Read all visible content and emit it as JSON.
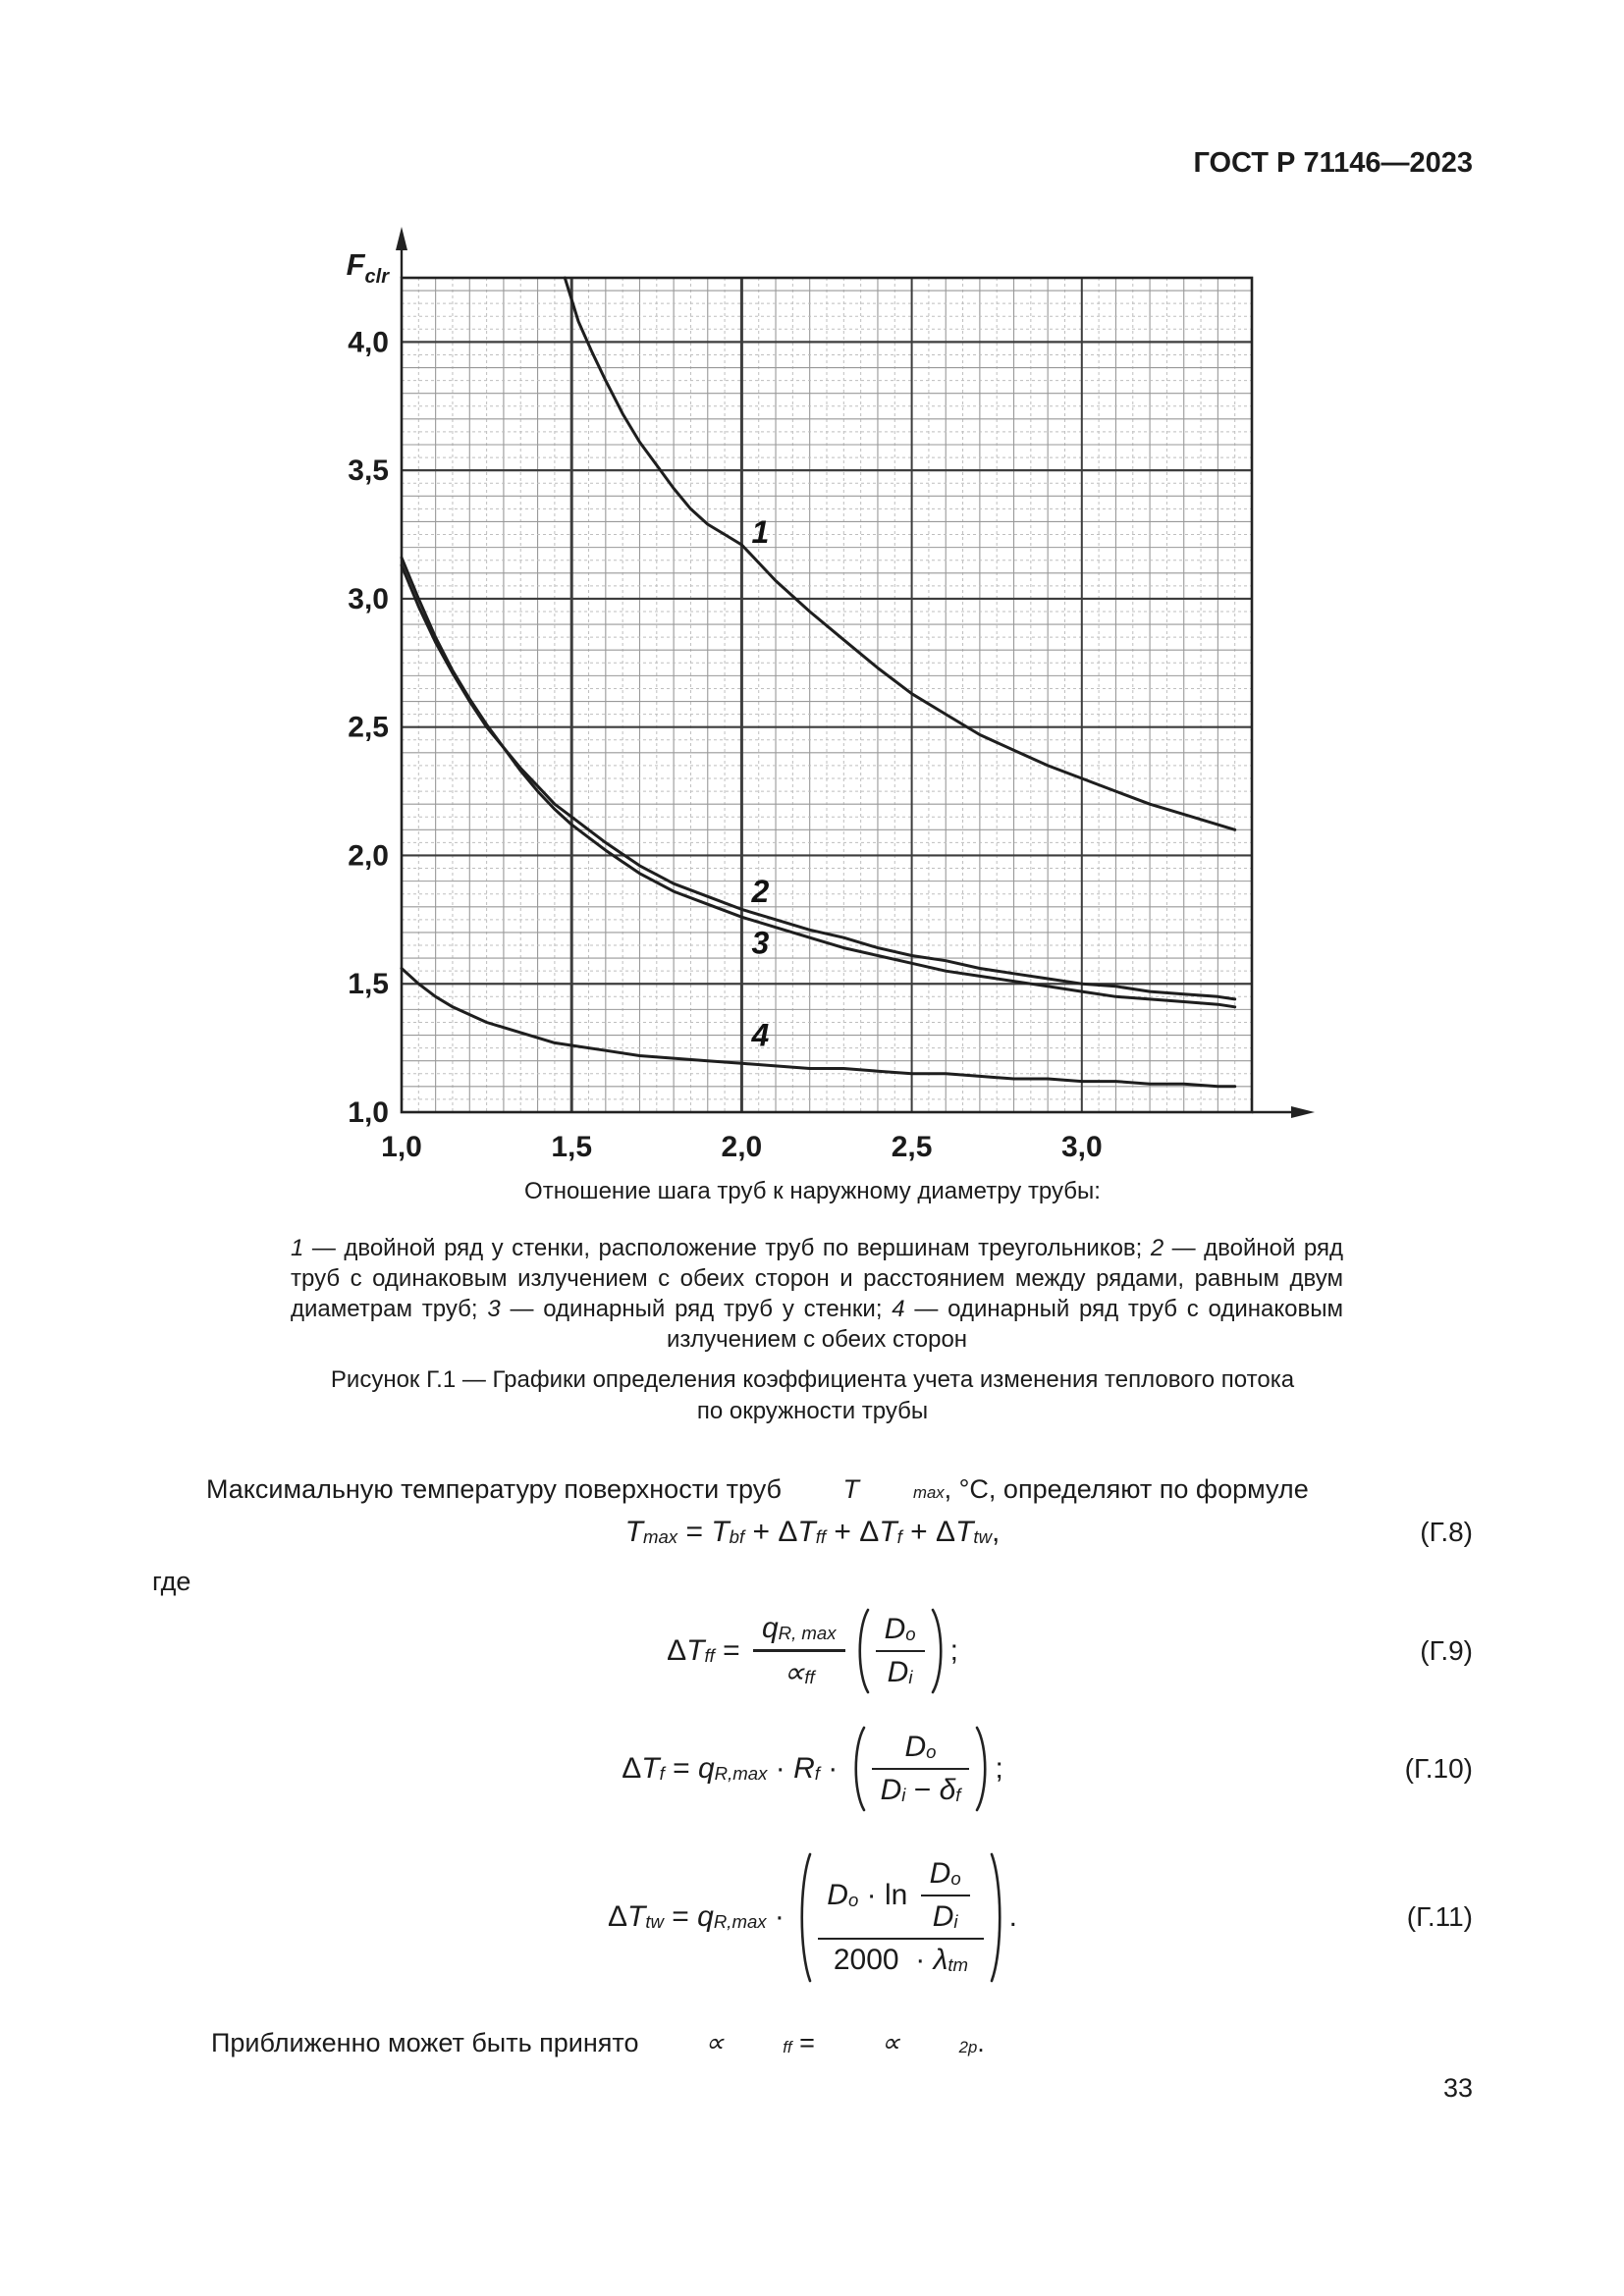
{
  "header": {
    "title": "ГОСТ Р 71146—2023"
  },
  "page_number": "33",
  "figure": {
    "caption_lines": [
      "Рисунок Г.1 — Графики определения коэффициента учета изменения теплового потока",
      "по окружности трубы"
    ],
    "legend_segments": [
      {
        "i": "1"
      },
      {
        "t": " — двойной ряд у стенки, расположение труб по вершинам треугольников; "
      },
      {
        "i": "2"
      },
      {
        "t": " — двойной ряд труб с одинаковым излучением с обеих сторон и расстоянием между рядами, равным двум диаметрам труб; "
      },
      {
        "i": "3"
      },
      {
        "t": " — одинарный ряд труб у стенки; "
      },
      {
        "i": "4"
      },
      {
        "t": " — одинарный ряд труб с одинаковым излучением с обеих сторон"
      }
    ]
  },
  "paragraphs": {
    "tmax_segments": [
      {
        "t": "Максимальную температуру поверхности труб "
      },
      {
        "v": "T",
        "sub": "max"
      },
      {
        "t": ", °С, определяют по формуле"
      }
    ],
    "where": "где",
    "approx_segments": [
      {
        "t": "Приближенно может быть принято "
      },
      {
        "v": "∝",
        "sub": "ff"
      },
      {
        "t": " = "
      },
      {
        "v": "∝",
        "sub": "2p"
      },
      {
        "t": "."
      }
    ]
  },
  "equations": {
    "g8": {
      "number": "(Г.8)",
      "nodes": [
        {
          "v": "T",
          "sub": "max"
        },
        {
          "op": " = "
        },
        {
          "v": "T",
          "sub": "bf"
        },
        {
          "op": " + "
        },
        {
          "pre": "Δ",
          "v": "T",
          "sub": "ff"
        },
        {
          "op": " + "
        },
        {
          "pre": "Δ",
          "v": "T",
          "sub": "f"
        },
        {
          "op": " + "
        },
        {
          "pre": "Δ",
          "v": "T",
          "sub": "tw"
        },
        {
          "op": ","
        }
      ]
    },
    "g9": {
      "number": "(Г.9)",
      "nodes": [
        {
          "pre": "Δ",
          "v": "T",
          "sub": "ff"
        },
        {
          "op": " = "
        },
        {
          "frac": {
            "n": [
              {
                "v": "q",
                "sub": "R, max"
              }
            ],
            "d": [
              {
                "v": "∝",
                "sub": "ff"
              }
            ]
          }
        },
        {
          "par": [
            {
              "frac": {
                "n": [
                  {
                    "v": "D",
                    "sub": "o"
                  }
                ],
                "d": [
                  {
                    "v": "D",
                    "sub": "i"
                  }
                ]
              }
            }
          ]
        },
        {
          "op": ";"
        }
      ]
    },
    "g10": {
      "number": "(Г.10)",
      "nodes": [
        {
          "pre": "Δ",
          "v": "T",
          "sub": "f"
        },
        {
          "op": " = "
        },
        {
          "v": "q",
          "sub": "R,max"
        },
        {
          "op": " · "
        },
        {
          "v": "R",
          "sub": "f"
        },
        {
          "op": " · "
        },
        {
          "par": [
            {
              "frac": {
                "n": [
                  {
                    "v": "D",
                    "sub": "o"
                  }
                ],
                "d": [
                  {
                    "v": "D",
                    "sub": "i"
                  },
                  {
                    "op": " − "
                  },
                  {
                    "v": "δ",
                    "sub": "f"
                  }
                ]
              }
            }
          ]
        },
        {
          "op": ";"
        }
      ]
    },
    "g11": {
      "number": "(Г.11)",
      "nodes": [
        {
          "pre": "Δ",
          "v": "T",
          "sub": "tw"
        },
        {
          "op": " = "
        },
        {
          "v": "q",
          "sub": "R,max"
        },
        {
          "op": " · "
        },
        {
          "par": [
            {
              "frac": {
                "n": [
                  {
                    "v": "D",
                    "sub": "o"
                  },
                  {
                    "op": " · "
                  },
                  {
                    "txt": "ln"
                  },
                  {
                    "frac": {
                      "n": [
                        {
                          "v": "D",
                          "sub": "o"
                        }
                      ],
                      "d": [
                        {
                          "v": "D",
                          "sub": "i"
                        }
                      ]
                    }
                  }
                ],
                "d": [
                  {
                    "txt": "2000"
                  },
                  {
                    "op": " · "
                  },
                  {
                    "v": "λ",
                    "sub": "tm"
                  }
                ]
              }
            }
          ]
        },
        {
          "op": "."
        }
      ]
    }
  },
  "chart_data": {
    "type": "line",
    "title": "Графики определения коэффициента учета изменения теплового потока по окружности трубы",
    "xlabel": "Отношение шага труб к наружному диаметру трубы:",
    "ylabel_base": "F",
    "ylabel_sub": "clr",
    "xlim": [
      1.0,
      3.5
    ],
    "ylim": [
      1.0,
      4.25
    ],
    "grid": {
      "minor_step": 0.05,
      "mid_step": 0.1,
      "major_step": 0.5,
      "emphasis_x": [
        1.5,
        2.0
      ]
    },
    "x_ticks": [
      {
        "v": 1.0,
        "label": "1,0"
      },
      {
        "v": 1.5,
        "label": "1,5"
      },
      {
        "v": 2.0,
        "label": "2,0"
      },
      {
        "v": 2.5,
        "label": "2,5"
      },
      {
        "v": 3.0,
        "label": "3,0"
      }
    ],
    "y_ticks": [
      {
        "v": 1.0,
        "label": "1,0"
      },
      {
        "v": 1.5,
        "label": "1,5"
      },
      {
        "v": 2.0,
        "label": "2,0"
      },
      {
        "v": 2.5,
        "label": "2,5"
      },
      {
        "v": 3.0,
        "label": "3,0"
      },
      {
        "v": 3.5,
        "label": "3,5"
      },
      {
        "v": 4.0,
        "label": "4,0"
      }
    ],
    "colors": {
      "curve": "#1e1e1e",
      "grid_minor": "#bfbfbf",
      "grid_mid": "#999999",
      "grid_major": "#3d3d3d",
      "border": "#222222"
    },
    "series": [
      {
        "name": "1",
        "label": "1",
        "label_pos": [
          2.055,
          3.26
        ],
        "points": [
          [
            1.48,
            4.25
          ],
          [
            1.52,
            4.08
          ],
          [
            1.56,
            3.96
          ],
          [
            1.6,
            3.85
          ],
          [
            1.65,
            3.72
          ],
          [
            1.7,
            3.61
          ],
          [
            1.75,
            3.52
          ],
          [
            1.8,
            3.43
          ],
          [
            1.85,
            3.35
          ],
          [
            1.9,
            3.29
          ],
          [
            1.95,
            3.25
          ],
          [
            2.0,
            3.21
          ],
          [
            2.1,
            3.07
          ],
          [
            2.2,
            2.95
          ],
          [
            2.3,
            2.84
          ],
          [
            2.4,
            2.73
          ],
          [
            2.5,
            2.63
          ],
          [
            2.6,
            2.55
          ],
          [
            2.7,
            2.47
          ],
          [
            2.8,
            2.41
          ],
          [
            2.9,
            2.35
          ],
          [
            3.0,
            2.3
          ],
          [
            3.1,
            2.25
          ],
          [
            3.2,
            2.2
          ],
          [
            3.3,
            2.16
          ],
          [
            3.4,
            2.12
          ],
          [
            3.45,
            2.1
          ]
        ]
      },
      {
        "name": "2",
        "label": "2",
        "label_pos": [
          2.055,
          1.86
        ],
        "points": [
          [
            1.0,
            3.13
          ],
          [
            1.05,
            2.97
          ],
          [
            1.1,
            2.83
          ],
          [
            1.15,
            2.71
          ],
          [
            1.2,
            2.6
          ],
          [
            1.25,
            2.5
          ],
          [
            1.3,
            2.42
          ],
          [
            1.35,
            2.34
          ],
          [
            1.4,
            2.27
          ],
          [
            1.45,
            2.2
          ],
          [
            1.5,
            2.15
          ],
          [
            1.55,
            2.1
          ],
          [
            1.6,
            2.05
          ],
          [
            1.7,
            1.96
          ],
          [
            1.8,
            1.89
          ],
          [
            1.9,
            1.84
          ],
          [
            2.0,
            1.79
          ],
          [
            2.1,
            1.75
          ],
          [
            2.2,
            1.71
          ],
          [
            2.3,
            1.68
          ],
          [
            2.4,
            1.64
          ],
          [
            2.5,
            1.61
          ],
          [
            2.6,
            1.59
          ],
          [
            2.7,
            1.56
          ],
          [
            2.8,
            1.54
          ],
          [
            2.9,
            1.52
          ],
          [
            3.0,
            1.5
          ],
          [
            3.1,
            1.49
          ],
          [
            3.2,
            1.47
          ],
          [
            3.3,
            1.46
          ],
          [
            3.4,
            1.45
          ],
          [
            3.45,
            1.44
          ]
        ]
      },
      {
        "name": "3",
        "label": "3",
        "label_pos": [
          2.055,
          1.66
        ],
        "points": [
          [
            1.0,
            3.16
          ],
          [
            1.05,
            3.0
          ],
          [
            1.1,
            2.85
          ],
          [
            1.15,
            2.72
          ],
          [
            1.2,
            2.61
          ],
          [
            1.25,
            2.51
          ],
          [
            1.3,
            2.42
          ],
          [
            1.35,
            2.33
          ],
          [
            1.4,
            2.25
          ],
          [
            1.45,
            2.18
          ],
          [
            1.5,
            2.12
          ],
          [
            1.55,
            2.07
          ],
          [
            1.6,
            2.02
          ],
          [
            1.7,
            1.93
          ],
          [
            1.8,
            1.86
          ],
          [
            1.9,
            1.81
          ],
          [
            2.0,
            1.76
          ],
          [
            2.1,
            1.72
          ],
          [
            2.2,
            1.68
          ],
          [
            2.3,
            1.64
          ],
          [
            2.4,
            1.61
          ],
          [
            2.5,
            1.58
          ],
          [
            2.6,
            1.55
          ],
          [
            2.7,
            1.53
          ],
          [
            2.8,
            1.51
          ],
          [
            2.9,
            1.49
          ],
          [
            3.0,
            1.47
          ],
          [
            3.1,
            1.45
          ],
          [
            3.2,
            1.44
          ],
          [
            3.3,
            1.43
          ],
          [
            3.4,
            1.42
          ],
          [
            3.45,
            1.41
          ]
        ]
      },
      {
        "name": "4",
        "label": "4",
        "label_pos": [
          2.055,
          1.3
        ],
        "points": [
          [
            1.0,
            1.56
          ],
          [
            1.05,
            1.5
          ],
          [
            1.1,
            1.45
          ],
          [
            1.15,
            1.41
          ],
          [
            1.2,
            1.38
          ],
          [
            1.25,
            1.35
          ],
          [
            1.3,
            1.33
          ],
          [
            1.35,
            1.31
          ],
          [
            1.4,
            1.29
          ],
          [
            1.45,
            1.27
          ],
          [
            1.5,
            1.26
          ],
          [
            1.6,
            1.24
          ],
          [
            1.7,
            1.22
          ],
          [
            1.8,
            1.21
          ],
          [
            1.9,
            1.2
          ],
          [
            2.0,
            1.19
          ],
          [
            2.1,
            1.18
          ],
          [
            2.2,
            1.17
          ],
          [
            2.3,
            1.17
          ],
          [
            2.4,
            1.16
          ],
          [
            2.5,
            1.15
          ],
          [
            2.6,
            1.15
          ],
          [
            2.7,
            1.14
          ],
          [
            2.8,
            1.13
          ],
          [
            2.9,
            1.13
          ],
          [
            3.0,
            1.12
          ],
          [
            3.1,
            1.12
          ],
          [
            3.2,
            1.11
          ],
          [
            3.3,
            1.11
          ],
          [
            3.4,
            1.1
          ],
          [
            3.45,
            1.1
          ]
        ]
      }
    ]
  }
}
